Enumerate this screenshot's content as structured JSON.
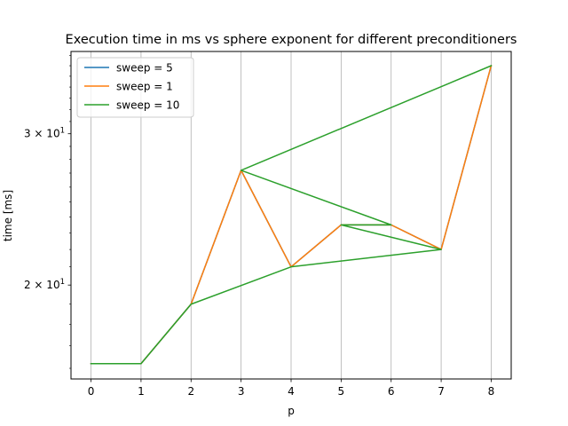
{
  "chart_data": {
    "type": "line",
    "title": "Execution time in ms vs sphere exponent for different preconditioners",
    "xlabel": "p",
    "ylabel": "time [ms]",
    "xlim": [
      -0.4,
      8.4
    ],
    "ylim": [
      15.55,
      37.4
    ],
    "yscale": "log",
    "x_ticks": [
      0,
      1,
      2,
      3,
      4,
      5,
      6,
      7,
      8
    ],
    "y_major_ticks": [
      {
        "value": 20,
        "base": "2 × 10",
        "exp": "1"
      },
      {
        "value": 30,
        "base": "3 × 10",
        "exp": "1"
      }
    ],
    "grid": "x-major",
    "legend_position": "upper left",
    "series": [
      {
        "name": "sweep = 5",
        "color": "#1f77b4",
        "points": [
          [
            0,
            16.2
          ],
          [
            1,
            16.2
          ],
          [
            2,
            19.0
          ],
          [
            3,
            27.2
          ],
          [
            4,
            21.0
          ],
          [
            5,
            23.5
          ],
          [
            6,
            23.5
          ],
          [
            7,
            22.0
          ],
          [
            8,
            36.0
          ]
        ]
      },
      {
        "name": "sweep = 1",
        "color": "#ff7f0e",
        "points": [
          [
            0,
            16.2
          ],
          [
            1,
            16.2
          ],
          [
            2,
            19.0
          ],
          [
            3,
            27.2
          ],
          [
            4,
            21.0
          ],
          [
            5,
            23.5
          ],
          [
            6,
            23.5
          ],
          [
            7,
            22.0
          ],
          [
            8,
            36.0
          ]
        ]
      },
      {
        "name": "sweep = 10",
        "color": "#2ca02c",
        "points": [
          [
            0,
            16.2
          ],
          [
            1,
            16.2
          ],
          [
            2,
            19.0
          ],
          [
            4,
            21.0
          ],
          [
            7,
            22.0
          ],
          [
            5,
            23.5
          ],
          [
            6,
            23.5
          ],
          [
            3,
            27.2
          ],
          [
            8,
            36.0
          ]
        ]
      }
    ]
  }
}
